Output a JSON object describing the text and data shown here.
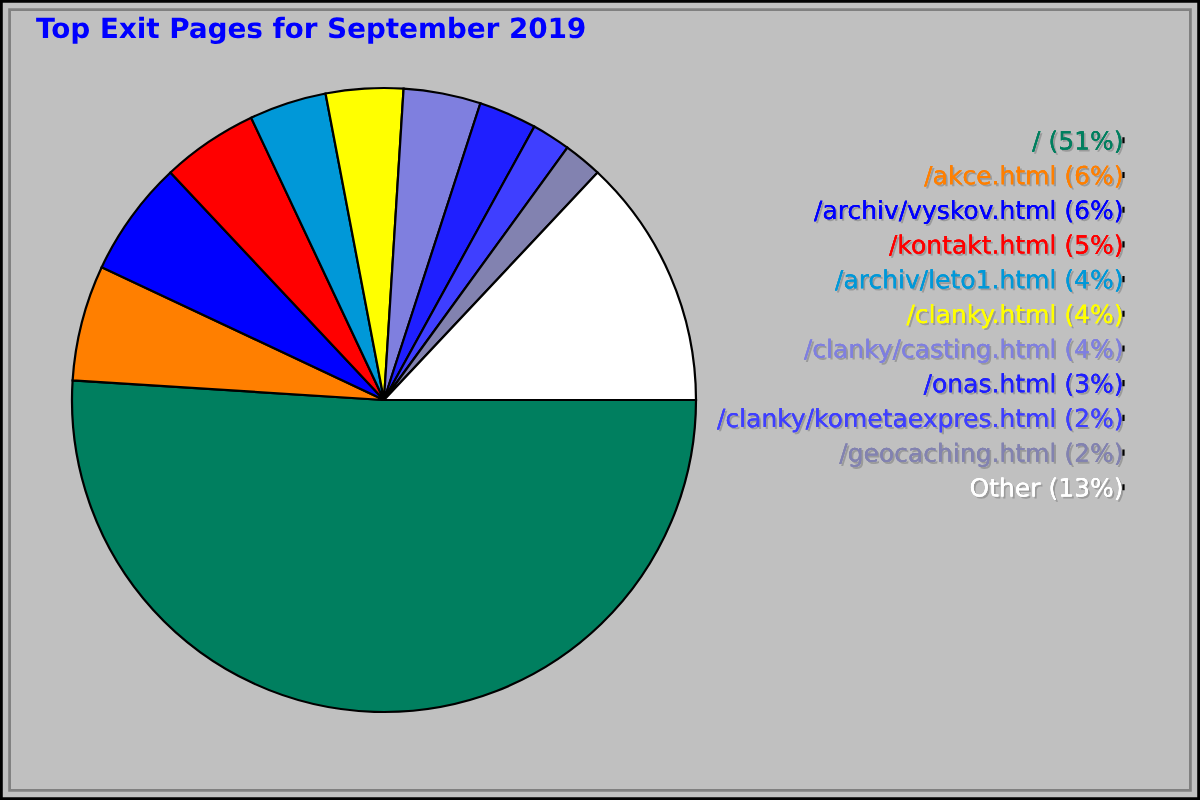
{
  "chart_data": {
    "type": "pie",
    "title": "Top Exit Pages for September 2019",
    "categories": [
      "/ (51%)",
      "/akce.html (6%)",
      "/archiv/vyskov.html (6%)",
      "/kontakt.html (5%)",
      "/archiv/leto1.html (4%)",
      "/clanky.html (4%)",
      "/clanky/casting.html (4%)",
      "/onas.html (3%)",
      "/clanky/kometaexpres.html (2%)",
      "/geocaching.html (2%)",
      "Other (13%)"
    ],
    "values": [
      51,
      6,
      6,
      5,
      4,
      4,
      4,
      3,
      2,
      2,
      13
    ],
    "colors": [
      "#007f5f",
      "#ff7f00",
      "#0000ff",
      "#ff0000",
      "#0098d8",
      "#ffff00",
      "#7f7fdf",
      "#1f1fff",
      "#3f3fff",
      "#8282b0",
      "#ffffff"
    ],
    "legend": "right"
  }
}
